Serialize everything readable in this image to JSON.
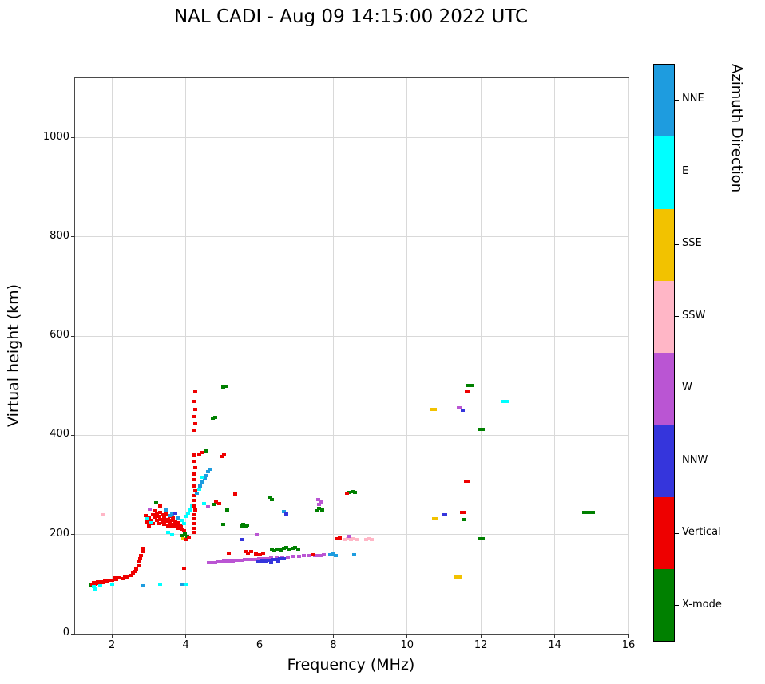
{
  "title": "NAL CADI - Aug 09 14:15:00 2022 UTC",
  "chart_data": {
    "type": "scatter",
    "title": "NAL CADI - Aug 09 14:15:00 2022 UTC",
    "xlabel": "Frequency (MHz)",
    "ylabel": "Virtual height (km)",
    "colorbar_label": "Azimuth Direction",
    "xlim": [
      1,
      16
    ],
    "ylim": [
      0,
      1120
    ],
    "xticks": [
      2,
      4,
      6,
      8,
      10,
      12,
      14,
      16
    ],
    "yticks": [
      0,
      200,
      400,
      600,
      800,
      1000
    ],
    "grid": true,
    "legend_position": "colorbar-right",
    "categories": [
      {
        "code": "X",
        "name": "X-mode",
        "color": "#008000"
      },
      {
        "code": "V",
        "name": "Vertical",
        "color": "#ee0000"
      },
      {
        "code": "NNW",
        "name": "NNW",
        "color": "#3535dc"
      },
      {
        "code": "W",
        "name": "W",
        "color": "#ba55d3"
      },
      {
        "code": "SSW",
        "name": "SSW",
        "color": "#ffb6c6"
      },
      {
        "code": "SSE",
        "name": "SSE",
        "color": "#f2c200"
      },
      {
        "code": "E",
        "name": "E",
        "color": "#00ffff"
      },
      {
        "code": "NNE",
        "name": "NNE",
        "color": "#1e9cdf"
      }
    ],
    "points": [
      [
        1.42,
        98,
        "X"
      ],
      [
        1.45,
        100,
        "V"
      ],
      [
        1.5,
        103,
        "V"
      ],
      [
        1.55,
        100,
        "V"
      ],
      [
        1.6,
        104,
        "V"
      ],
      [
        1.65,
        101,
        "V"
      ],
      [
        1.7,
        105,
        "V"
      ],
      [
        1.75,
        103,
        "V"
      ],
      [
        1.8,
        107,
        "V"
      ],
      [
        1.85,
        104,
        "V"
      ],
      [
        1.9,
        108,
        "V"
      ],
      [
        2.0,
        108,
        "V"
      ],
      [
        2.05,
        112,
        "V"
      ],
      [
        2.1,
        110,
        "V"
      ],
      [
        2.2,
        112,
        "V"
      ],
      [
        2.3,
        111,
        "V"
      ],
      [
        2.35,
        115,
        "V"
      ],
      [
        2.4,
        114,
        "V"
      ],
      [
        2.5,
        118,
        "V"
      ],
      [
        2.55,
        122,
        "V"
      ],
      [
        2.6,
        126,
        "V"
      ],
      [
        2.65,
        131,
        "V"
      ],
      [
        2.7,
        137,
        "V"
      ],
      [
        2.72,
        145,
        "V"
      ],
      [
        2.75,
        152,
        "V"
      ],
      [
        2.78,
        158,
        "V"
      ],
      [
        2.82,
        165,
        "V"
      ],
      [
        2.85,
        172,
        "V"
      ],
      [
        1.5,
        95,
        "E"
      ],
      [
        1.55,
        90,
        "E"
      ],
      [
        1.68,
        96,
        "E"
      ],
      [
        2.0,
        100,
        "E"
      ],
      [
        2.85,
        97,
        "NNE"
      ],
      [
        3.3,
        100,
        "E"
      ],
      [
        3.9,
        100,
        "NNE"
      ],
      [
        4.0,
        100,
        "E"
      ],
      [
        3.95,
        132,
        "V"
      ],
      [
        1.75,
        240,
        "SSW"
      ],
      [
        2.9,
        238,
        "V"
      ],
      [
        2.95,
        225,
        "V"
      ],
      [
        3.0,
        233,
        "V"
      ],
      [
        3.0,
        218,
        "V"
      ],
      [
        3.05,
        228,
        "V"
      ],
      [
        3.1,
        240,
        "V"
      ],
      [
        3.1,
        222,
        "V"
      ],
      [
        3.15,
        235,
        "V"
      ],
      [
        3.15,
        248,
        "V"
      ],
      [
        3.2,
        228,
        "V"
      ],
      [
        3.2,
        242,
        "V"
      ],
      [
        3.25,
        222,
        "V"
      ],
      [
        3.25,
        236,
        "V"
      ],
      [
        3.3,
        230,
        "V"
      ],
      [
        3.3,
        245,
        "V"
      ],
      [
        3.3,
        258,
        "V"
      ],
      [
        3.35,
        225,
        "V"
      ],
      [
        3.35,
        240,
        "V"
      ],
      [
        3.4,
        220,
        "V"
      ],
      [
        3.4,
        233,
        "V"
      ],
      [
        3.45,
        227,
        "V"
      ],
      [
        3.45,
        242,
        "V"
      ],
      [
        3.5,
        218,
        "V"
      ],
      [
        3.5,
        230,
        "V"
      ],
      [
        3.55,
        224,
        "V"
      ],
      [
        3.55,
        236,
        "V"
      ],
      [
        3.6,
        217,
        "V"
      ],
      [
        3.6,
        228,
        "V"
      ],
      [
        3.65,
        221,
        "V"
      ],
      [
        3.65,
        233,
        "V"
      ],
      [
        3.7,
        215,
        "V"
      ],
      [
        3.7,
        226,
        "V"
      ],
      [
        3.75,
        219,
        "V"
      ],
      [
        3.8,
        213,
        "V"
      ],
      [
        3.8,
        224,
        "V"
      ],
      [
        3.85,
        217,
        "V"
      ],
      [
        3.9,
        211,
        "V"
      ],
      [
        3.95,
        207,
        "V"
      ],
      [
        2.95,
        232,
        "E"
      ],
      [
        3.05,
        224,
        "E"
      ],
      [
        3.5,
        204,
        "E"
      ],
      [
        3.62,
        200,
        "E"
      ],
      [
        3.9,
        228,
        "E"
      ],
      [
        3.95,
        222,
        "E"
      ],
      [
        4.0,
        236,
        "E"
      ],
      [
        4.05,
        243,
        "E"
      ],
      [
        4.1,
        250,
        "E"
      ],
      [
        4.15,
        257,
        "E"
      ],
      [
        3.55,
        238,
        "NNE"
      ],
      [
        3.62,
        242,
        "NNE"
      ],
      [
        3.8,
        234,
        "NNE"
      ],
      [
        3.45,
        250,
        "NNE"
      ],
      [
        3.7,
        243,
        "NNW"
      ],
      [
        3.02,
        251,
        "W"
      ],
      [
        3.18,
        264,
        "X"
      ],
      [
        3.9,
        198,
        "X"
      ],
      [
        3.97,
        201,
        "X"
      ],
      [
        4.03,
        196,
        "X"
      ],
      [
        3.93,
        192,
        "SSE"
      ],
      [
        4.0,
        190,
        "V"
      ],
      [
        4.07,
        194,
        "V"
      ],
      [
        4.2,
        205,
        "V"
      ],
      [
        4.22,
        213,
        "V"
      ],
      [
        4.2,
        222,
        "V"
      ],
      [
        4.23,
        231,
        "V"
      ],
      [
        4.2,
        240,
        "V"
      ],
      [
        4.24,
        249,
        "V"
      ],
      [
        4.2,
        258,
        "V"
      ],
      [
        4.23,
        268,
        "V"
      ],
      [
        4.21,
        278,
        "V"
      ],
      [
        4.24,
        288,
        "V"
      ],
      [
        4.2,
        298,
        "V"
      ],
      [
        4.23,
        310,
        "V"
      ],
      [
        4.21,
        322,
        "V"
      ],
      [
        4.24,
        334,
        "V"
      ],
      [
        4.2,
        347,
        "V"
      ],
      [
        4.23,
        360,
        "V"
      ],
      [
        4.22,
        410,
        "V"
      ],
      [
        4.24,
        423,
        "V"
      ],
      [
        4.21,
        437,
        "V"
      ],
      [
        4.24,
        452,
        "V"
      ],
      [
        4.22,
        468,
        "V"
      ],
      [
        4.24,
        487,
        "V"
      ],
      [
        4.3,
        283,
        "NNE"
      ],
      [
        4.38,
        298,
        "NNE"
      ],
      [
        4.45,
        305,
        "NNE"
      ],
      [
        4.5,
        312,
        "NNE"
      ],
      [
        4.55,
        319,
        "NNE"
      ],
      [
        4.6,
        326,
        "NNE"
      ],
      [
        4.65,
        331,
        "NNE"
      ],
      [
        4.35,
        291,
        "E"
      ],
      [
        4.48,
        262,
        "E"
      ],
      [
        4.42,
        315,
        "E"
      ],
      [
        4.35,
        362,
        "V"
      ],
      [
        4.45,
        366,
        "V"
      ],
      [
        4.52,
        368,
        "X"
      ],
      [
        4.72,
        434,
        "X"
      ],
      [
        4.78,
        436,
        "X"
      ],
      [
        5.0,
        497,
        "X"
      ],
      [
        5.06,
        499,
        "X"
      ],
      [
        4.97,
        358,
        "V"
      ],
      [
        5.03,
        362,
        "V"
      ],
      [
        4.8,
        265,
        "V"
      ],
      [
        4.9,
        262,
        "V"
      ],
      [
        4.75,
        261,
        "X"
      ],
      [
        4.6,
        256,
        "W"
      ],
      [
        5.12,
        250,
        "X"
      ],
      [
        5.32,
        282,
        "V"
      ],
      [
        5.0,
        220,
        "X"
      ],
      [
        5.5,
        217,
        "X"
      ],
      [
        5.55,
        221,
        "X"
      ],
      [
        5.6,
        215,
        "X"
      ],
      [
        5.65,
        219,
        "X"
      ],
      [
        5.92,
        199,
        "W"
      ],
      [
        5.5,
        190,
        "NNW"
      ],
      [
        5.15,
        162,
        "V"
      ],
      [
        4.62,
        143,
        "W"
      ],
      [
        4.7,
        144,
        "W"
      ],
      [
        4.78,
        144,
        "W"
      ],
      [
        4.86,
        145,
        "W"
      ],
      [
        4.94,
        145,
        "W"
      ],
      [
        5.02,
        146,
        "W"
      ],
      [
        5.1,
        146,
        "W"
      ],
      [
        5.18,
        147,
        "W"
      ],
      [
        5.26,
        147,
        "W"
      ],
      [
        5.34,
        148,
        "W"
      ],
      [
        5.42,
        148,
        "W"
      ],
      [
        5.5,
        148,
        "W"
      ],
      [
        5.58,
        149,
        "W"
      ],
      [
        5.66,
        149,
        "W"
      ],
      [
        5.74,
        150,
        "W"
      ],
      [
        5.82,
        150,
        "W"
      ],
      [
        5.9,
        150,
        "W"
      ],
      [
        5.98,
        151,
        "W"
      ],
      [
        6.06,
        151,
        "W"
      ],
      [
        6.14,
        152,
        "W"
      ],
      [
        6.22,
        152,
        "W"
      ],
      [
        6.3,
        153,
        "W"
      ],
      [
        6.45,
        153,
        "W"
      ],
      [
        6.6,
        154,
        "W"
      ],
      [
        6.75,
        155,
        "W"
      ],
      [
        6.9,
        156,
        "W"
      ],
      [
        7.05,
        156,
        "W"
      ],
      [
        7.2,
        157,
        "W"
      ],
      [
        7.35,
        158,
        "W"
      ],
      [
        7.5,
        158,
        "W"
      ],
      [
        5.95,
        145,
        "NNW"
      ],
      [
        6.05,
        146,
        "NNW"
      ],
      [
        6.15,
        147,
        "NNW"
      ],
      [
        6.25,
        148,
        "NNW"
      ],
      [
        6.35,
        149,
        "NNW"
      ],
      [
        6.45,
        150,
        "NNW"
      ],
      [
        6.55,
        151,
        "NNW"
      ],
      [
        6.65,
        152,
        "NNW"
      ],
      [
        6.3,
        144,
        "NNW"
      ],
      [
        6.5,
        145,
        "NNW"
      ],
      [
        7.9,
        159,
        "NNE"
      ],
      [
        7.98,
        161,
        "NNE"
      ],
      [
        8.06,
        158,
        "NNE"
      ],
      [
        8.55,
        160,
        "NNE"
      ],
      [
        7.58,
        157,
        "W"
      ],
      [
        7.66,
        158,
        "W"
      ],
      [
        7.74,
        159,
        "W"
      ],
      [
        6.32,
        170,
        "X"
      ],
      [
        6.4,
        167,
        "X"
      ],
      [
        6.48,
        171,
        "X"
      ],
      [
        6.56,
        169,
        "X"
      ],
      [
        6.64,
        172,
        "X"
      ],
      [
        6.72,
        174,
        "X"
      ],
      [
        6.8,
        170,
        "X"
      ],
      [
        6.88,
        172,
        "X"
      ],
      [
        6.96,
        174,
        "X"
      ],
      [
        7.04,
        171,
        "X"
      ],
      [
        5.6,
        165,
        "V"
      ],
      [
        5.68,
        163,
        "V"
      ],
      [
        5.76,
        166,
        "V"
      ],
      [
        5.9,
        161,
        "V"
      ],
      [
        6.0,
        160,
        "V"
      ],
      [
        6.08,
        162,
        "V"
      ],
      [
        7.45,
        160,
        "V"
      ],
      [
        6.25,
        275,
        "X"
      ],
      [
        6.32,
        270,
        "X"
      ],
      [
        6.65,
        247,
        "NNE"
      ],
      [
        6.72,
        242,
        "NNW"
      ],
      [
        7.58,
        270,
        "W"
      ],
      [
        7.64,
        265,
        "W"
      ],
      [
        7.6,
        260,
        "W"
      ],
      [
        7.6,
        252,
        "X"
      ],
      [
        7.68,
        249,
        "X"
      ],
      [
        7.55,
        248,
        "X"
      ],
      [
        8.1,
        191,
        "V"
      ],
      [
        8.16,
        193,
        "V"
      ],
      [
        8.3,
        190,
        "SSW"
      ],
      [
        8.38,
        191,
        "SSW"
      ],
      [
        8.46,
        190,
        "SSW"
      ],
      [
        8.54,
        192,
        "SSW"
      ],
      [
        8.62,
        190,
        "SSW"
      ],
      [
        8.88,
        190,
        "SSW"
      ],
      [
        8.96,
        191,
        "SSW"
      ],
      [
        9.04,
        190,
        "SSW"
      ],
      [
        8.42,
        196,
        "W"
      ],
      [
        8.42,
        285,
        "X"
      ],
      [
        8.5,
        286,
        "X"
      ],
      [
        8.58,
        285,
        "X"
      ],
      [
        8.36,
        283,
        "V"
      ],
      [
        10.68,
        452,
        "SSE"
      ],
      [
        10.74,
        452,
        "SSE"
      ],
      [
        10.72,
        231,
        "SSE"
      ],
      [
        10.78,
        231,
        "SSE"
      ],
      [
        10.97,
        240,
        "NNW"
      ],
      [
        11.03,
        240,
        "NNW"
      ],
      [
        11.48,
        245,
        "V"
      ],
      [
        11.54,
        245,
        "V"
      ],
      [
        11.55,
        230,
        "X"
      ],
      [
        11.38,
        455,
        "W"
      ],
      [
        11.44,
        455,
        "W"
      ],
      [
        11.5,
        450,
        "NNW"
      ],
      [
        11.62,
        500,
        "X"
      ],
      [
        11.68,
        500,
        "X"
      ],
      [
        11.74,
        500,
        "X"
      ],
      [
        11.6,
        488,
        "V"
      ],
      [
        11.66,
        488,
        "V"
      ],
      [
        11.98,
        412,
        "X"
      ],
      [
        12.04,
        412,
        "X"
      ],
      [
        11.58,
        308,
        "V"
      ],
      [
        11.64,
        308,
        "V"
      ],
      [
        11.98,
        191,
        "X"
      ],
      [
        12.04,
        191,
        "X"
      ],
      [
        12.6,
        468,
        "E"
      ],
      [
        12.66,
        468,
        "E"
      ],
      [
        12.72,
        468,
        "E"
      ],
      [
        11.3,
        115,
        "SSE"
      ],
      [
        11.36,
        115,
        "SSE"
      ],
      [
        11.42,
        115,
        "SSE"
      ],
      [
        14.78,
        244,
        "X"
      ],
      [
        14.86,
        244,
        "X"
      ],
      [
        14.94,
        244,
        "X"
      ],
      [
        15.02,
        244,
        "X"
      ]
    ]
  }
}
